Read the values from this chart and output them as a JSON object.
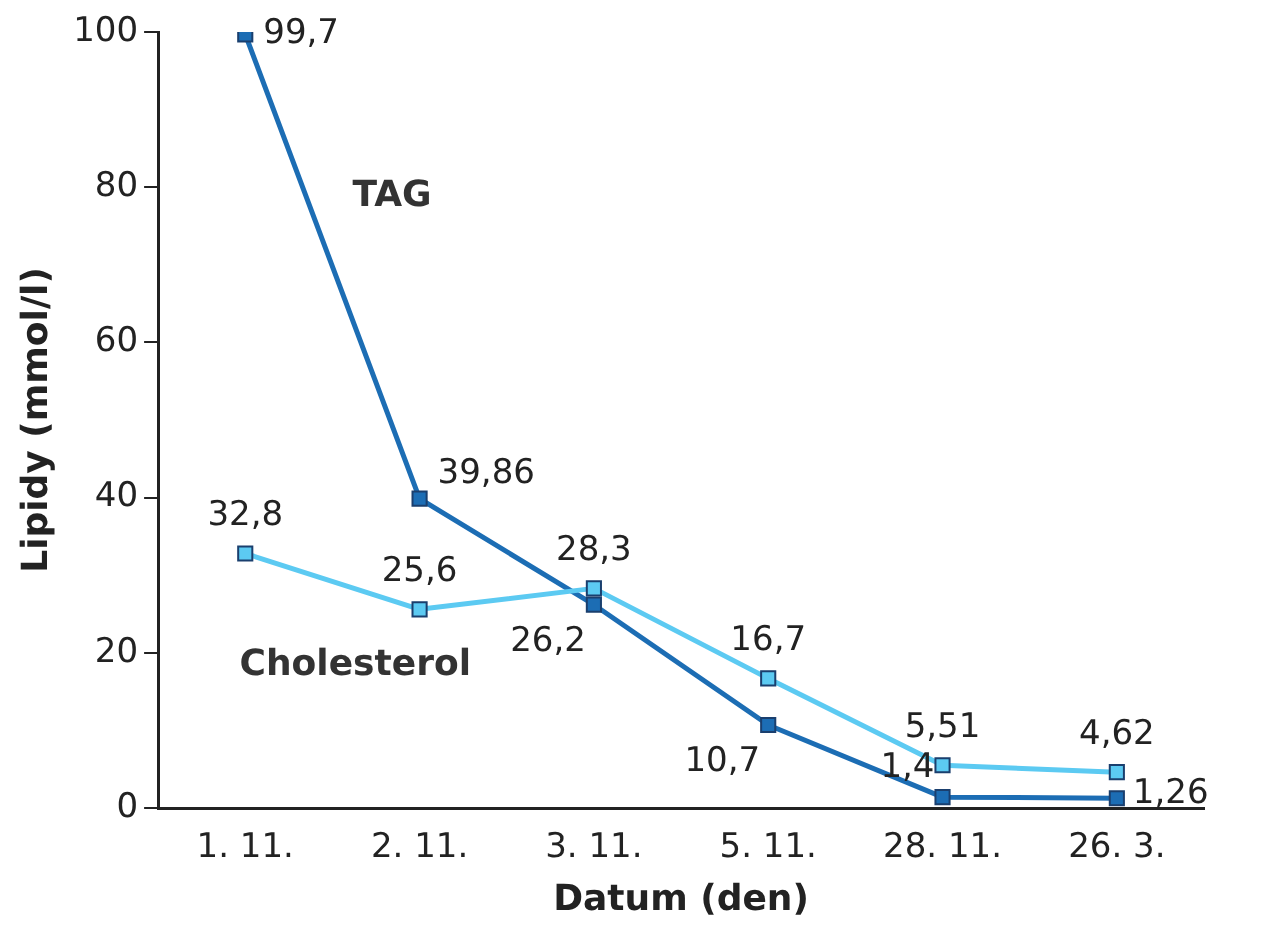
{
  "chart_data": {
    "type": "line",
    "xlabel": "Datum (den)",
    "ylabel": "Lipidy (mmol/l)",
    "categories": [
      "1. 11.",
      "2. 11.",
      "3. 11.",
      "5. 11.",
      "28. 11.",
      "26. 3."
    ],
    "series": [
      {
        "name": "TAG",
        "color": "#1c6db4",
        "values": [
          99.7,
          39.86,
          26.2,
          10.7,
          1.4,
          1.26
        ],
        "value_labels": [
          "99,7",
          "39,86",
          "26,2",
          "10,7",
          "1,4",
          "1,26"
        ]
      },
      {
        "name": "Cholesterol",
        "color": "#5ccaf2",
        "values": [
          32.8,
          25.6,
          28.3,
          16.7,
          5.51,
          4.62
        ],
        "value_labels": [
          "32,8",
          "25,6",
          "28,3",
          "16,7",
          "5,51",
          "4,62"
        ]
      }
    ],
    "ylim": [
      0,
      100
    ],
    "yticks": [
      0,
      20,
      40,
      60,
      80,
      100
    ],
    "grid": false,
    "legend": false,
    "marker": "square",
    "line_style": "solid"
  }
}
